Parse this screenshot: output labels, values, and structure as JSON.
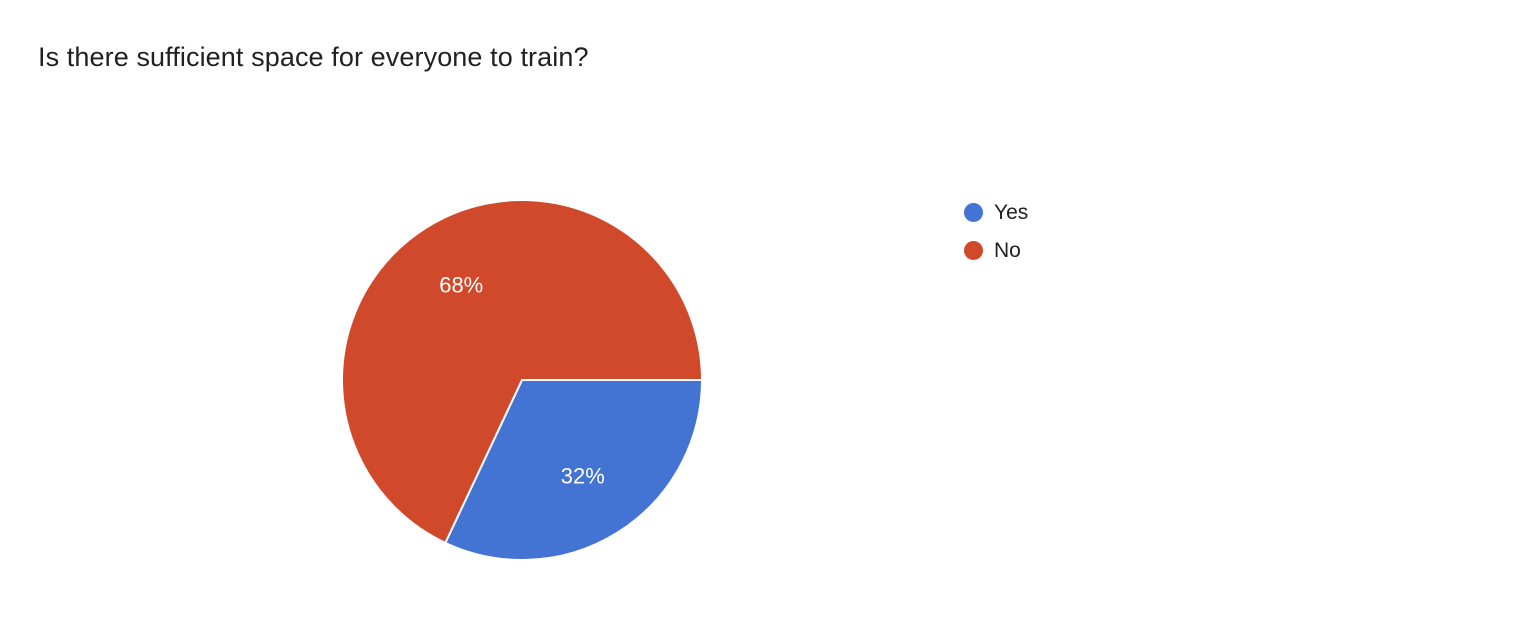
{
  "title": "Is there sufficient space for everyone to train?",
  "chart_data": {
    "type": "pie",
    "title": "Is there sufficient space for everyone to train?",
    "categories": [
      "Yes",
      "No"
    ],
    "values": [
      32,
      68
    ],
    "data_labels": [
      "32%",
      "68%"
    ],
    "colors": [
      "#4373d3",
      "#d0492b"
    ],
    "start_angle_deg": 0,
    "direction": "clockwise",
    "legend_position": "right",
    "label_color": "#ffffff"
  },
  "legend": {
    "items": [
      {
        "label": "Yes",
        "color": "#4373d3"
      },
      {
        "label": "No",
        "color": "#d0492b"
      }
    ]
  }
}
